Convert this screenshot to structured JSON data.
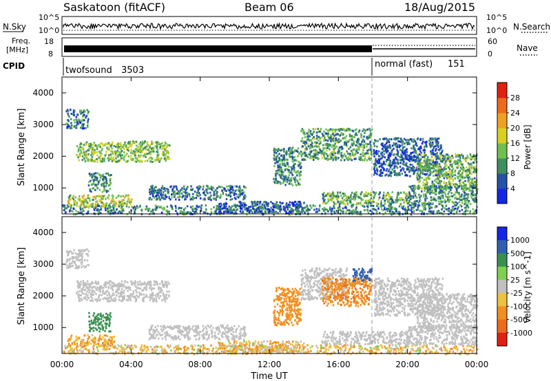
{
  "header": {
    "station": "Saskatoon (fitACF)",
    "beam": "Beam 06",
    "date": "18/Aug/2015"
  },
  "summary_panels": {
    "nsky_label": "N.Sky",
    "nsearch_label": "N.Search",
    "freq_label_line1": "Freq.",
    "freq_label_line2": "[MHz]",
    "nave_label": "Nave",
    "cpid_label": "CPID",
    "noise_ticks_left": [
      "10^5",
      "10^0"
    ],
    "noise_ticks_right": [
      "10^5",
      "10^0"
    ],
    "freq_ticks": [
      "18",
      "8"
    ],
    "nave_ticks": [
      "60",
      "0"
    ],
    "cpid_segments": [
      {
        "name": "twofsound",
        "id": "3503",
        "start_hour": 0,
        "end_hour": 18
      },
      {
        "name": "normal (fast)",
        "id": "151",
        "start_hour": 18,
        "end_hour": 24
      }
    ]
  },
  "colors": {
    "power_scale": [
      "#1426e6",
      "#2553a8",
      "#3f8f5e",
      "#6fbf4e",
      "#d8d020",
      "#f0a020",
      "#ee6a1a",
      "#e02010"
    ],
    "velocity_scale": [
      "#1426e6",
      "#3060b0",
      "#3a9050",
      "#7dd050",
      "#c0c0c0",
      "#f0c040",
      "#f09020",
      "#ee6a1a",
      "#e02010"
    ],
    "ground_scatter": "#b8b8b8"
  },
  "chart_data": [
    {
      "type": "heatmap",
      "title": "Power",
      "xlabel": "Time UT",
      "ylabel": "Slant Range [km]",
      "xlim": [
        0,
        24
      ],
      "ylim": [
        180,
        4500
      ],
      "x_ticks": [
        "00:00",
        "04:00",
        "08:00",
        "12:00",
        "16:00",
        "20:00",
        "00:00"
      ],
      "y_ticks": [
        "1000",
        "2000",
        "3000",
        "4000"
      ],
      "colorbar_label": "Power [dB]",
      "colorbar_ticks": [
        "4",
        "8",
        "12",
        "16",
        "20",
        "24",
        "28"
      ],
      "colorbar_range": [
        0,
        30
      ],
      "scatter_regions": [
        {
          "t0": 0.0,
          "t1": 24.0,
          "r0": 190,
          "r1": 480,
          "value": 9
        },
        {
          "t0": 0.2,
          "t1": 1.5,
          "r0": 2900,
          "r1": 3500,
          "value": 8
        },
        {
          "t0": 0.8,
          "t1": 6.2,
          "r0": 1850,
          "r1": 2500,
          "value": 14
        },
        {
          "t0": 1.5,
          "t1": 2.8,
          "r0": 900,
          "r1": 1500,
          "value": 10
        },
        {
          "t0": 0.3,
          "t1": 4.0,
          "r0": 420,
          "r1": 800,
          "value": 16
        },
        {
          "t0": 5.0,
          "t1": 10.6,
          "r0": 650,
          "r1": 1100,
          "value": 8
        },
        {
          "t0": 9.0,
          "t1": 14.0,
          "r0": 250,
          "r1": 600,
          "value": 6
        },
        {
          "t0": 12.2,
          "t1": 13.8,
          "r0": 1100,
          "r1": 2300,
          "value": 10
        },
        {
          "t0": 13.8,
          "t1": 17.9,
          "r0": 1900,
          "r1": 2900,
          "value": 11
        },
        {
          "t0": 15.0,
          "t1": 20.0,
          "r0": 500,
          "r1": 900,
          "value": 12
        },
        {
          "t0": 18.0,
          "t1": 22.0,
          "r0": 1400,
          "r1": 2600,
          "value": 6
        },
        {
          "t0": 20.5,
          "t1": 24.0,
          "r0": 1000,
          "r1": 2100,
          "value": 13
        },
        {
          "t0": 20.0,
          "t1": 24.0,
          "r0": 480,
          "r1": 1100,
          "value": 10
        }
      ]
    },
    {
      "type": "heatmap",
      "title": "Velocity",
      "xlabel": "Time UT",
      "ylabel": "Slant Range [km]",
      "xlim": [
        0,
        24
      ],
      "ylim": [
        180,
        4500
      ],
      "x_ticks": [
        "00:00",
        "04:00",
        "08:00",
        "12:00",
        "16:00",
        "20:00",
        "00:00"
      ],
      "y_ticks": [
        "1000",
        "2000",
        "3000",
        "4000"
      ],
      "colorbar_label": "Velocity [m s^-1]",
      "colorbar_ticks": [
        "1000",
        "500",
        "100",
        "25",
        "-25",
        "-100",
        "-500",
        "-1000"
      ],
      "scatter_regions": [
        {
          "t0": 0.0,
          "t1": 24.0,
          "r0": 190,
          "r1": 480,
          "value": -60
        },
        {
          "t0": 0.2,
          "t1": 1.5,
          "r0": 2900,
          "r1": 3500,
          "value": 0
        },
        {
          "t0": 0.8,
          "t1": 6.2,
          "r0": 1850,
          "r1": 2500,
          "value": 0
        },
        {
          "t0": 1.5,
          "t1": 2.8,
          "r0": 900,
          "r1": 1500,
          "value": 200
        },
        {
          "t0": 0.3,
          "t1": 3.0,
          "r0": 420,
          "r1": 800,
          "value": -90
        },
        {
          "t0": 5.0,
          "t1": 10.6,
          "r0": 650,
          "r1": 1100,
          "value": 0
        },
        {
          "t0": 9.0,
          "t1": 14.0,
          "r0": 250,
          "r1": 600,
          "value": -60
        },
        {
          "t0": 12.2,
          "t1": 13.8,
          "r0": 1100,
          "r1": 2300,
          "value": -400
        },
        {
          "t0": 13.8,
          "t1": 16.5,
          "r0": 1900,
          "r1": 2900,
          "value": 0
        },
        {
          "t0": 15.0,
          "t1": 17.9,
          "r0": 1700,
          "r1": 2600,
          "value": -450
        },
        {
          "t0": 16.8,
          "t1": 17.9,
          "r0": 2500,
          "r1": 2900,
          "value": 600
        },
        {
          "t0": 15.0,
          "t1": 20.0,
          "r0": 500,
          "r1": 900,
          "value": 0
        },
        {
          "t0": 18.0,
          "t1": 22.0,
          "r0": 1400,
          "r1": 2600,
          "value": 0
        },
        {
          "t0": 20.5,
          "t1": 24.0,
          "r0": 1000,
          "r1": 2100,
          "value": 0
        },
        {
          "t0": 20.0,
          "t1": 24.0,
          "r0": 480,
          "r1": 1100,
          "value": 0
        }
      ]
    }
  ]
}
